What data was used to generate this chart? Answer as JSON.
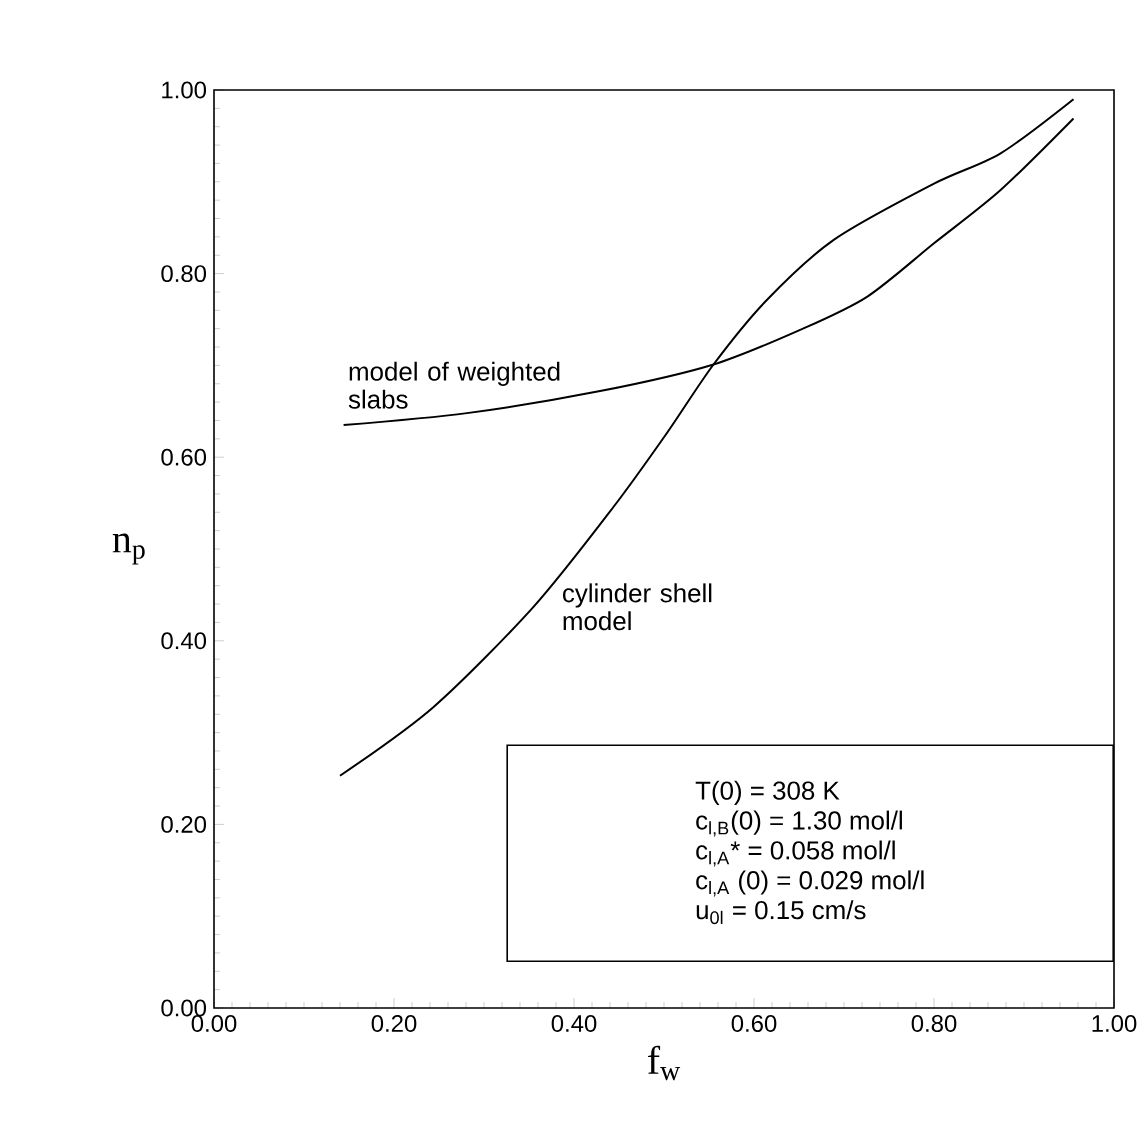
{
  "chart_data": {
    "type": "line",
    "xlabel": "f$_{w}$",
    "ylabel": "n$_{p}$",
    "xlim": [
      0,
      1
    ],
    "ylim": [
      0,
      1
    ],
    "xticks": [
      {
        "value": 0,
        "label": "0.00"
      },
      {
        "value": 0.2,
        "label": "0.20"
      },
      {
        "value": 0.4,
        "label": "0.40"
      },
      {
        "value": 0.6,
        "label": "0.60"
      },
      {
        "value": 0.8,
        "label": "0.80"
      },
      {
        "value": 1,
        "label": "1.00"
      }
    ],
    "yticks": [
      {
        "value": 0,
        "label": "0.00"
      },
      {
        "value": 0.2,
        "label": "0.20"
      },
      {
        "value": 0.4,
        "label": "0.40"
      },
      {
        "value": 0.6,
        "label": "0.60"
      },
      {
        "value": 0.8,
        "label": "0.80"
      },
      {
        "value": 1,
        "label": "1.00"
      }
    ],
    "series": [
      {
        "name": "model of weighted slabs",
        "color": "#000000",
        "x": [
          0.144,
          0.281,
          0.429,
          0.555,
          0.652,
          0.726,
          0.8,
          0.874,
          0.955
        ],
        "values": [
          0.635,
          0.648,
          0.672,
          0.701,
          0.739,
          0.775,
          0.833,
          0.891,
          0.969
        ]
      },
      {
        "name": "cylinder shell model",
        "color": "#000000",
        "x": [
          0.14,
          0.244,
          0.355,
          0.444,
          0.503,
          0.555,
          0.614,
          0.689,
          0.8,
          0.874,
          0.955
        ],
        "values": [
          0.253,
          0.328,
          0.437,
          0.546,
          0.626,
          0.701,
          0.771,
          0.837,
          0.898,
          0.931,
          0.99
        ]
      }
    ],
    "annotations": [
      "T(0) = 308 K",
      "c$_{l,B}$(0) = 1.30 mol/l",
      "c$_{l,A}$* = 0.058 mol/l",
      "c$_{l,A}$ (0) = 0.029 mol/l",
      "u$_{0l}$ = 0.15 cm/s"
    ]
  }
}
